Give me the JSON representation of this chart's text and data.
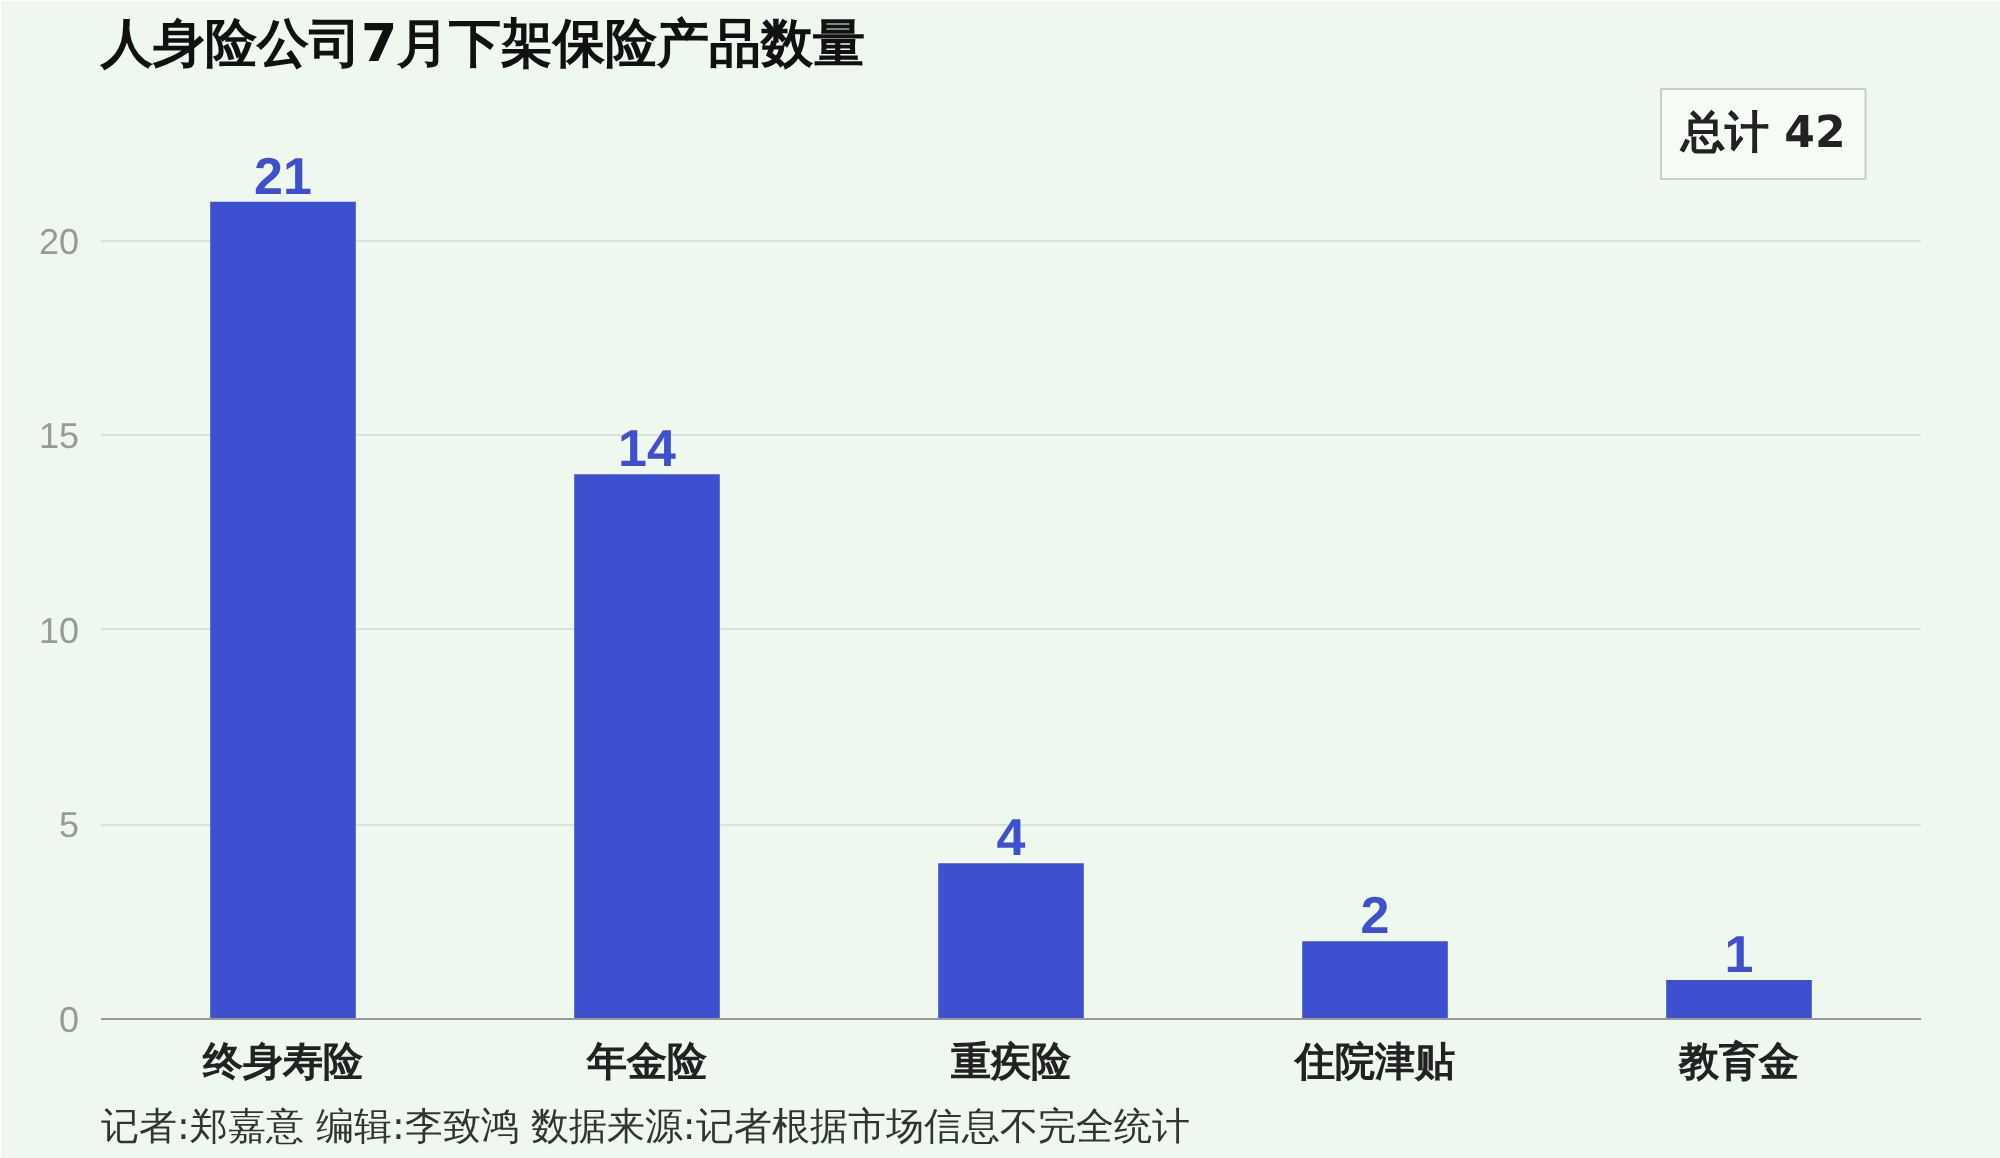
{
  "chart_data": {
    "type": "bar",
    "title": "人身险公司7月下架保险产品数量",
    "categories": [
      "终身寿险",
      "年金险",
      "重疾险",
      "住院津贴",
      "教育金"
    ],
    "values": [
      21,
      14,
      4,
      2,
      1
    ],
    "color": "#3d51d0",
    "ylim": [
      0,
      24
    ],
    "yticks": [
      0,
      5,
      10,
      15,
      20
    ],
    "grid": "y",
    "data_labels": true,
    "annotations": [
      "总计 42",
      "记者:郑嘉意  编辑:李致鸿  数据来源:记者根据市场信息不完全统计"
    ]
  }
}
